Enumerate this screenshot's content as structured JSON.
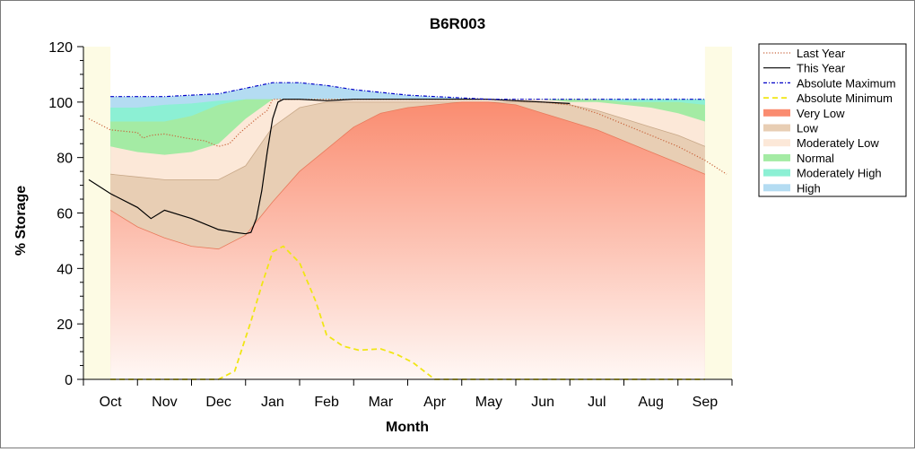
{
  "chart_data": {
    "type": "area",
    "title": "B6R003",
    "xlabel": "Month",
    "ylabel": "% Storage",
    "ylim": [
      0,
      120
    ],
    "yticks": [
      0,
      20,
      40,
      60,
      80,
      100,
      120
    ],
    "x_range": [
      -0.5,
      11.5
    ],
    "grid": false,
    "legend_position": "right",
    "categories": [
      "Oct",
      "Nov",
      "Dec",
      "Jan",
      "Feb",
      "Mar",
      "Apr",
      "May",
      "Jun",
      "Jul",
      "Aug",
      "Sep"
    ],
    "bands": [
      {
        "name": "Very Low",
        "color_top": "#fa8c70",
        "color_bottom": "#fff8f5",
        "points": [
          [
            0,
            61
          ],
          [
            0.5,
            55
          ],
          [
            1,
            51
          ],
          [
            1.5,
            48
          ],
          [
            2,
            47
          ],
          [
            2.5,
            52
          ],
          [
            3,
            64
          ],
          [
            3.5,
            75
          ],
          [
            4,
            83
          ],
          [
            4.5,
            91
          ],
          [
            5,
            96
          ],
          [
            5.5,
            98
          ],
          [
            6,
            99
          ],
          [
            6.5,
            100
          ],
          [
            7,
            100
          ],
          [
            7.5,
            99
          ],
          [
            8,
            96
          ],
          [
            8.5,
            93
          ],
          [
            9,
            90
          ],
          [
            9.5,
            86
          ],
          [
            10,
            82
          ],
          [
            10.5,
            78
          ],
          [
            11,
            74
          ]
        ]
      },
      {
        "name": "Low",
        "color": "#e8ceb4",
        "points": [
          [
            0,
            74
          ],
          [
            0.5,
            73
          ],
          [
            1,
            72
          ],
          [
            1.5,
            72
          ],
          [
            2,
            72
          ],
          [
            2.5,
            77
          ],
          [
            3,
            91
          ],
          [
            3.5,
            98
          ],
          [
            4,
            100
          ],
          [
            4.5,
            100
          ],
          [
            5,
            100
          ],
          [
            5.5,
            100
          ],
          [
            6,
            100
          ],
          [
            6.5,
            100
          ],
          [
            7,
            100
          ],
          [
            7.5,
            100
          ],
          [
            8,
            100
          ],
          [
            8.5,
            99
          ],
          [
            9,
            97
          ],
          [
            9.5,
            94
          ],
          [
            10,
            91
          ],
          [
            10.5,
            88
          ],
          [
            11,
            84
          ]
        ]
      },
      {
        "name": "Moderately Low",
        "color": "#fce8d8",
        "points": [
          [
            0,
            84
          ],
          [
            0.5,
            82
          ],
          [
            1,
            81
          ],
          [
            1.5,
            82
          ],
          [
            2,
            85
          ],
          [
            2.5,
            94
          ],
          [
            3,
            101
          ],
          [
            3.5,
            101
          ],
          [
            4,
            101
          ],
          [
            4.5,
            101
          ],
          [
            5,
            101
          ],
          [
            5.5,
            101
          ],
          [
            6,
            101
          ],
          [
            6.5,
            101
          ],
          [
            7,
            101
          ],
          [
            7.5,
            101
          ],
          [
            8,
            101
          ],
          [
            8.5,
            100
          ],
          [
            9,
            100
          ],
          [
            9.5,
            99
          ],
          [
            10,
            98
          ],
          [
            10.5,
            96
          ],
          [
            11,
            93
          ]
        ]
      },
      {
        "name": "Normal",
        "color": "#a4eba4",
        "points": [
          [
            0,
            93
          ],
          [
            0.5,
            93
          ],
          [
            1,
            93
          ],
          [
            1.5,
            95
          ],
          [
            2,
            99
          ],
          [
            2.5,
            101
          ],
          [
            3,
            101
          ],
          [
            3.5,
            101
          ],
          [
            4,
            101
          ],
          [
            4.5,
            101
          ],
          [
            5,
            101
          ],
          [
            5.5,
            101
          ],
          [
            6,
            101
          ],
          [
            6.5,
            101
          ],
          [
            7,
            101
          ],
          [
            7.5,
            101
          ],
          [
            8,
            101
          ],
          [
            8.5,
            101
          ],
          [
            9,
            101
          ],
          [
            9.5,
            100
          ],
          [
            10,
            100
          ],
          [
            10.5,
            100
          ],
          [
            11,
            99
          ]
        ]
      },
      {
        "name": "Moderately High",
        "color": "#8cf0d4",
        "points": [
          [
            0,
            98
          ],
          [
            0.5,
            98
          ],
          [
            1,
            99
          ],
          [
            1.5,
            99.5
          ],
          [
            2,
            100.5
          ],
          [
            2.5,
            101
          ],
          [
            3,
            101
          ],
          [
            3.5,
            101
          ],
          [
            4,
            101
          ],
          [
            4.5,
            101
          ],
          [
            5,
            101
          ],
          [
            5.5,
            101
          ],
          [
            6,
            101
          ],
          [
            6.5,
            101
          ],
          [
            7,
            101
          ],
          [
            7.5,
            101
          ],
          [
            8,
            101
          ],
          [
            8.5,
            101
          ],
          [
            9,
            101
          ],
          [
            9.5,
            101
          ],
          [
            10,
            101
          ],
          [
            10.5,
            101
          ],
          [
            11,
            101
          ]
        ]
      },
      {
        "name": "High",
        "color": "#b4dcf2",
        "points": [
          [
            0,
            102
          ],
          [
            0.5,
            102
          ],
          [
            1,
            102
          ],
          [
            1.5,
            102.5
          ],
          [
            2,
            103
          ],
          [
            2.5,
            105
          ],
          [
            3,
            107
          ],
          [
            3.5,
            107
          ],
          [
            4,
            106
          ],
          [
            4.5,
            104.5
          ],
          [
            5,
            103.5
          ],
          [
            5.5,
            102.5
          ],
          [
            6,
            102
          ],
          [
            6.5,
            101.5
          ],
          [
            7,
            101
          ],
          [
            7.5,
            101
          ],
          [
            8,
            101
          ],
          [
            8.5,
            101
          ],
          [
            9,
            101
          ],
          [
            9.5,
            101
          ],
          [
            10,
            101
          ],
          [
            10.5,
            101
          ],
          [
            11,
            101
          ]
        ]
      }
    ],
    "lines": [
      {
        "name": "Last Year",
        "color": "#c8643c",
        "style": "dotted",
        "points": [
          [
            -0.4,
            94
          ],
          [
            0,
            90
          ],
          [
            0.5,
            89
          ],
          [
            0.6,
            87
          ],
          [
            0.75,
            88
          ],
          [
            1,
            88.5
          ],
          [
            1.4,
            87
          ],
          [
            1.75,
            86
          ],
          [
            2,
            84
          ],
          [
            2.2,
            85
          ],
          [
            2.4,
            89
          ],
          [
            2.7,
            94
          ],
          [
            2.9,
            97
          ],
          [
            3,
            101
          ],
          [
            3.2,
            101
          ],
          [
            3.5,
            101
          ],
          [
            4,
            101
          ],
          [
            4.5,
            101
          ],
          [
            5,
            101
          ],
          [
            5.5,
            101
          ],
          [
            6,
            101
          ],
          [
            6.5,
            101
          ],
          [
            7,
            101
          ],
          [
            7.5,
            100.5
          ],
          [
            8,
            100
          ],
          [
            8.5,
            99
          ],
          [
            9,
            96
          ],
          [
            9.5,
            92
          ],
          [
            10,
            88
          ],
          [
            10.5,
            84
          ],
          [
            11,
            79
          ],
          [
            11.4,
            74
          ]
        ]
      },
      {
        "name": "This Year",
        "color": "#000000",
        "style": "solid",
        "points": [
          [
            -0.4,
            72
          ],
          [
            0,
            67
          ],
          [
            0.5,
            62
          ],
          [
            0.75,
            58
          ],
          [
            1,
            61
          ],
          [
            1.5,
            58
          ],
          [
            2,
            54
          ],
          [
            2.3,
            53
          ],
          [
            2.5,
            52.5
          ],
          [
            2.6,
            53
          ],
          [
            2.7,
            58
          ],
          [
            2.8,
            68
          ],
          [
            2.9,
            82
          ],
          [
            3,
            94
          ],
          [
            3.1,
            100
          ],
          [
            3.2,
            101
          ],
          [
            3.5,
            101
          ],
          [
            4,
            100.5
          ],
          [
            4.5,
            101
          ],
          [
            5,
            101
          ],
          [
            5.5,
            101
          ],
          [
            6,
            101
          ],
          [
            6.5,
            101
          ],
          [
            7,
            101
          ],
          [
            7.5,
            100.5
          ],
          [
            8,
            100
          ],
          [
            8.5,
            99.5
          ]
        ]
      },
      {
        "name": "Absolute Maximum",
        "color": "#0000c8",
        "style": "dashdot",
        "points": [
          [
            0,
            102
          ],
          [
            0.5,
            102
          ],
          [
            1,
            102
          ],
          [
            1.5,
            102.5
          ],
          [
            2,
            103
          ],
          [
            2.5,
            105
          ],
          [
            3,
            107
          ],
          [
            3.5,
            107
          ],
          [
            4,
            106
          ],
          [
            4.5,
            104.5
          ],
          [
            5,
            103.5
          ],
          [
            5.5,
            102.5
          ],
          [
            6,
            102
          ],
          [
            6.5,
            101.5
          ],
          [
            7,
            101
          ],
          [
            7.5,
            101
          ],
          [
            8,
            101
          ],
          [
            8.5,
            101
          ],
          [
            9,
            101
          ],
          [
            9.5,
            101
          ],
          [
            10,
            101
          ],
          [
            10.5,
            101
          ],
          [
            11,
            101
          ]
        ]
      },
      {
        "name": "Absolute Minimum",
        "color": "#f0e614",
        "style": "dashed",
        "points": [
          [
            0,
            0
          ],
          [
            0.5,
            0
          ],
          [
            1,
            0
          ],
          [
            1.5,
            0
          ],
          [
            2,
            0
          ],
          [
            2.3,
            3
          ],
          [
            2.6,
            21
          ],
          [
            2.8,
            34
          ],
          [
            3,
            46
          ],
          [
            3.2,
            48
          ],
          [
            3.5,
            42
          ],
          [
            3.8,
            28
          ],
          [
            4,
            16
          ],
          [
            4.3,
            12
          ],
          [
            4.6,
            10.5
          ],
          [
            5,
            11
          ],
          [
            5.3,
            9
          ],
          [
            5.6,
            6
          ],
          [
            6,
            0
          ],
          [
            7,
            0
          ],
          [
            8,
            0
          ],
          [
            9,
            0
          ],
          [
            10,
            0
          ],
          [
            11,
            0
          ]
        ]
      }
    ],
    "legend": [
      {
        "name": "Last Year",
        "kind": "line",
        "color": "#c8643c",
        "style": "dotted"
      },
      {
        "name": "This Year",
        "kind": "line",
        "color": "#000000",
        "style": "solid"
      },
      {
        "name": "Absolute Maximum",
        "kind": "line",
        "color": "#0000c8",
        "style": "dashdot"
      },
      {
        "name": "Absolute Minimum",
        "kind": "line",
        "color": "#f0e614",
        "style": "dashed"
      },
      {
        "name": "Very Low",
        "kind": "patch",
        "color": "#fa8c70"
      },
      {
        "name": "Low",
        "kind": "patch",
        "color": "#e8ceb4"
      },
      {
        "name": "Moderately Low",
        "kind": "patch",
        "color": "#fce8d8"
      },
      {
        "name": "Normal",
        "kind": "patch",
        "color": "#a4eba4"
      },
      {
        "name": "Moderately High",
        "kind": "patch",
        "color": "#8cf0d4"
      },
      {
        "name": "High",
        "kind": "patch",
        "color": "#b4dcf2"
      }
    ],
    "colors": {
      "plot_background": "#fdfbe4",
      "axis": "#000000"
    }
  }
}
